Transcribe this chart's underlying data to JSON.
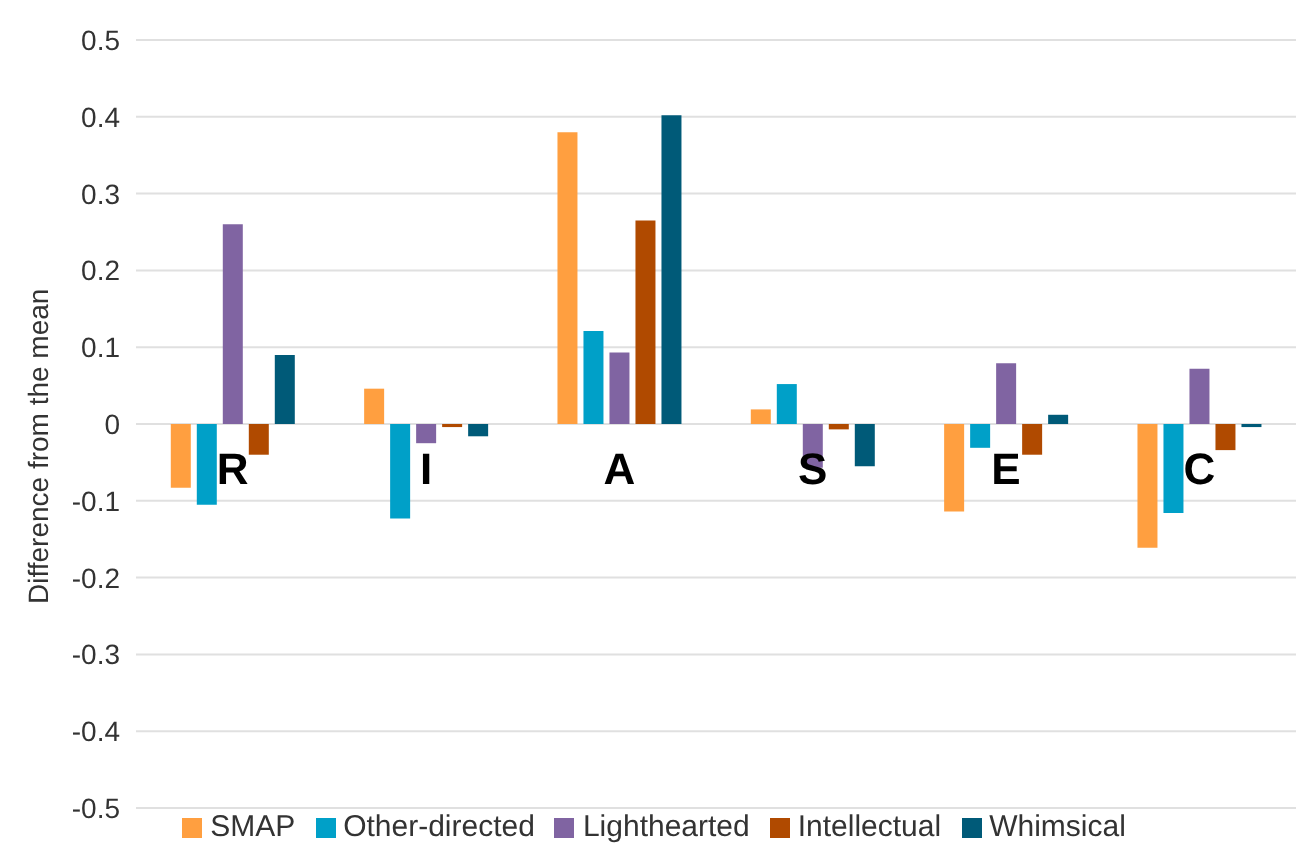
{
  "chart_data": {
    "type": "bar",
    "ylabel": "Difference from the mean",
    "categories": [
      "R",
      "I",
      "A",
      "S",
      "E",
      "C"
    ],
    "series": [
      {
        "name": "SMAP",
        "color": "#ff9f40",
        "values": [
          -0.083,
          0.046,
          0.38,
          0.019,
          -0.114,
          -0.161
        ]
      },
      {
        "name": "Other-directed",
        "color": "#00a0c8",
        "values": [
          -0.105,
          -0.123,
          0.121,
          0.052,
          -0.031,
          -0.116
        ]
      },
      {
        "name": "Lighthearted",
        "color": "#8064a2",
        "values": [
          0.26,
          -0.025,
          0.093,
          -0.057,
          0.079,
          0.072
        ]
      },
      {
        "name": "Intellectual",
        "color": "#b04a00",
        "values": [
          -0.04,
          -0.004,
          0.265,
          -0.007,
          -0.04,
          -0.034
        ]
      },
      {
        "name": "Whimsical",
        "color": "#005a78",
        "values": [
          0.09,
          -0.016,
          0.402,
          -0.055,
          0.012,
          -0.004
        ]
      }
    ],
    "ylim": [
      -0.5,
      0.5
    ],
    "yticks": [
      -0.5,
      -0.4,
      -0.3,
      -0.2,
      -0.1,
      0,
      0.1,
      0.2,
      0.3,
      0.4,
      0.5
    ],
    "grid": "y",
    "legend": "bottom"
  }
}
